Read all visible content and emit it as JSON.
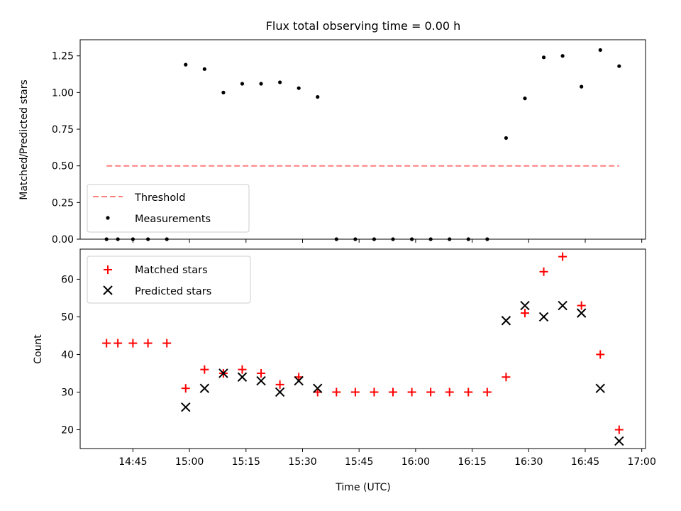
{
  "chart_data": [
    {
      "type": "scatter",
      "title": "Flux total observing time = 0.00 h",
      "xlabel": "",
      "ylabel": "Matched/Predicted stars",
      "ylim": [
        0,
        1.36
      ],
      "yticks": [
        "0.00",
        "0.25",
        "0.50",
        "0.75",
        "1.00",
        "1.25"
      ],
      "threshold": {
        "label": "Threshold",
        "value": 0.5,
        "x_start": "14:38",
        "x_end": "16:54",
        "color": "#ff7f7f",
        "style": "dashed"
      },
      "series": [
        {
          "name": "Measurements",
          "marker": "point",
          "color": "#000000",
          "x": [
            "14:38",
            "14:41",
            "14:45",
            "14:49",
            "14:54",
            "14:59",
            "15:04",
            "15:09",
            "15:14",
            "15:19",
            "15:24",
            "15:29",
            "15:34",
            "15:39",
            "15:44",
            "15:49",
            "15:54",
            "15:59",
            "16:04",
            "16:09",
            "16:14",
            "16:19",
            "16:24",
            "16:29",
            "16:34",
            "16:39",
            "16:44",
            "16:49",
            "16:54"
          ],
          "y": [
            0,
            0,
            0,
            0,
            0,
            1.19,
            1.16,
            1.0,
            1.06,
            1.06,
            1.07,
            1.03,
            0.97,
            0,
            0,
            0,
            0,
            0,
            0,
            0,
            0,
            0,
            0.69,
            0.96,
            1.24,
            1.25,
            1.04,
            1.29,
            1.18
          ]
        }
      ],
      "legend": "lower-left"
    },
    {
      "type": "scatter",
      "title": "",
      "xlabel": "Time (UTC)",
      "ylabel": "Count",
      "ylim": [
        15,
        68
      ],
      "yticks": [
        "20",
        "30",
        "40",
        "50",
        "60"
      ],
      "xlim": [
        "14:31",
        "17:01"
      ],
      "xticks": [
        "14:45",
        "15:00",
        "15:15",
        "15:30",
        "15:45",
        "16:00",
        "16:15",
        "16:30",
        "16:45",
        "17:00"
      ],
      "series": [
        {
          "name": "Matched stars",
          "marker": "plus",
          "color": "#ff0000",
          "x": [
            "14:38",
            "14:41",
            "14:45",
            "14:49",
            "14:54",
            "14:59",
            "15:04",
            "15:09",
            "15:14",
            "15:19",
            "15:24",
            "15:29",
            "15:34",
            "15:39",
            "15:44",
            "15:49",
            "15:54",
            "15:59",
            "16:04",
            "16:09",
            "16:14",
            "16:19",
            "16:24",
            "16:29",
            "16:34",
            "16:39",
            "16:44",
            "16:49",
            "16:54"
          ],
          "y": [
            43,
            43,
            43,
            43,
            43,
            31,
            36,
            35,
            36,
            35,
            32,
            34,
            30,
            30,
            30,
            30,
            30,
            30,
            30,
            30,
            30,
            30,
            34,
            51,
            62,
            66,
            53,
            40,
            20
          ]
        },
        {
          "name": "Predicted stars",
          "marker": "x",
          "color": "#000000",
          "x": [
            "14:59",
            "15:04",
            "15:09",
            "15:14",
            "15:19",
            "15:24",
            "15:29",
            "15:34",
            "16:24",
            "16:29",
            "16:34",
            "16:39",
            "16:44",
            "16:49",
            "16:54"
          ],
          "y": [
            26,
            31,
            35,
            34,
            33,
            30,
            33,
            31,
            49,
            53,
            50,
            53,
            51,
            31,
            17
          ]
        }
      ],
      "legend": "upper-left"
    }
  ]
}
